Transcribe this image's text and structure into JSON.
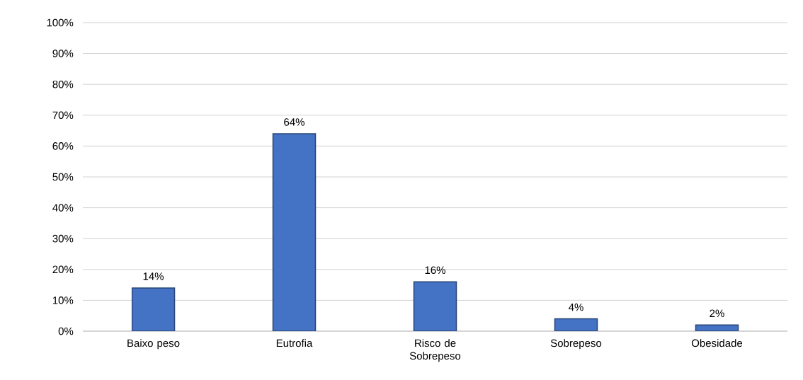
{
  "chart_data": {
    "type": "bar",
    "categories": [
      "Baixo peso",
      "Eutrofia",
      "Risco de Sobrepeso",
      "Sobrepeso",
      "Obesidade"
    ],
    "values": [
      14,
      64,
      16,
      4,
      2
    ],
    "value_labels": [
      "14%",
      "64%",
      "16%",
      "4%",
      "2%"
    ],
    "color": "#4472c4",
    "ylim": [
      0,
      100
    ],
    "yticks": [
      {
        "value": 0,
        "label": "0%"
      },
      {
        "value": 10,
        "label": "10%"
      },
      {
        "value": 20,
        "label": "20%"
      },
      {
        "value": 30,
        "label": "30%"
      },
      {
        "value": 40,
        "label": "40%"
      },
      {
        "value": 50,
        "label": "50%"
      },
      {
        "value": 60,
        "label": "60%"
      },
      {
        "value": 70,
        "label": "70%"
      },
      {
        "value": 80,
        "label": "80%"
      },
      {
        "value": 90,
        "label": "90%"
      },
      {
        "value": 100,
        "label": "100%"
      }
    ],
    "grid": "y"
  }
}
